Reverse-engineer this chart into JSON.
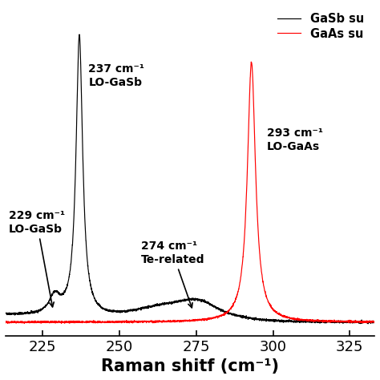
{
  "x_min": 213,
  "x_max": 333,
  "xlabel": "Raman shitf (cm⁻¹)",
  "xlabel_fontsize": 15,
  "tick_fontsize": 13,
  "xticks": [
    225,
    250,
    275,
    300,
    325
  ],
  "legend_labels": [
    "GaSb su",
    "GaAs su"
  ],
  "legend_colors": [
    "black",
    "red"
  ],
  "bg_color": "white",
  "black_line_color": "black",
  "red_line_color": "red",
  "y_max": 10.5,
  "y_min": -0.3
}
